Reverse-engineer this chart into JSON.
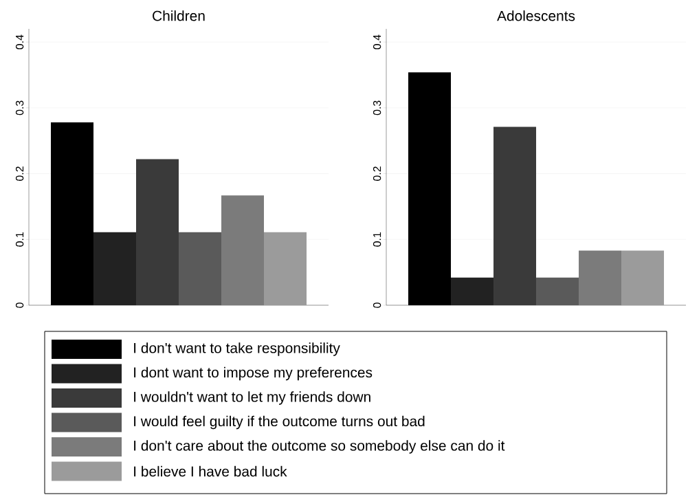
{
  "chart_data": [
    {
      "type": "bar",
      "title": "Children",
      "categories": [
        null
      ],
      "series": [
        {
          "name": "I don't want to take responsibility",
          "color": "#000000",
          "values": [
            0.278
          ]
        },
        {
          "name": "I dont want to impose my preferences",
          "color": "#222222",
          "values": [
            0.111
          ]
        },
        {
          "name": "I wouldn't want to let my friends down",
          "color": "#3a3a3a",
          "values": [
            0.222
          ]
        },
        {
          "name": "I would feel guilty if the outcome turns out bad",
          "color": "#5a5a5a",
          "values": [
            0.111
          ]
        },
        {
          "name": "I don't care about the outcome so somebody else can do it",
          "color": "#7b7b7b",
          "values": [
            0.167
          ]
        },
        {
          "name": "I believe I have bad luck",
          "color": "#9b9b9b",
          "values": [
            0.111
          ]
        }
      ],
      "ylim": [
        0,
        0.42
      ],
      "yticks": [
        0,
        0.1,
        0.2,
        0.3,
        0.4
      ],
      "grid": "y",
      "legend": "bottom"
    },
    {
      "type": "bar",
      "title": "Adolescents",
      "categories": [
        null
      ],
      "series": [
        {
          "color": "#000000",
          "values": [
            0.354
          ]
        },
        {
          "color": "#222222",
          "values": [
            0.042
          ]
        },
        {
          "color": "#3a3a3a",
          "values": [
            0.271
          ]
        },
        {
          "color": "#5a5a5a",
          "values": [
            0.042
          ]
        },
        {
          "color": "#7b7b7b",
          "values": [
            0.083
          ]
        },
        {
          "color": "#9b9b9b",
          "values": [
            0.083
          ]
        }
      ],
      "ylim": [
        0,
        0.42
      ],
      "yticks": [
        0,
        0.1,
        0.2,
        0.3,
        0.4
      ],
      "grid": "y"
    }
  ]
}
